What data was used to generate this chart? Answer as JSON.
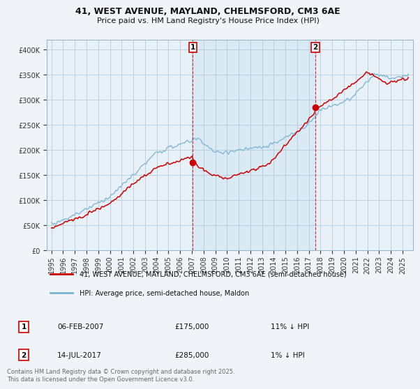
{
  "title1": "41, WEST AVENUE, MAYLAND, CHELMSFORD, CM3 6AE",
  "title2": "Price paid vs. HM Land Registry's House Price Index (HPI)",
  "legend_label1": "41, WEST AVENUE, MAYLAND, CHELMSFORD, CM3 6AE (semi-detached house)",
  "legend_label2": "HPI: Average price, semi-detached house, Maldon",
  "line1_color": "#cc0000",
  "line2_color": "#7ab3d4",
  "shade_color": "#daeaf5",
  "annotation1_date": "06-FEB-2007",
  "annotation1_price": "£175,000",
  "annotation1_hpi": "11% ↓ HPI",
  "annotation2_date": "14-JUL-2017",
  "annotation2_price": "£285,000",
  "annotation2_hpi": "1% ↓ HPI",
  "vline1_x_year": 2007.09,
  "vline2_x_year": 2017.54,
  "sale1_x": 2007.09,
  "sale1_y": 175000,
  "sale2_x": 2017.54,
  "sale2_y": 285000,
  "ylim": [
    0,
    420000
  ],
  "yticks": [
    0,
    50000,
    100000,
    150000,
    200000,
    250000,
    300000,
    350000,
    400000
  ],
  "xlim_min": 1994.6,
  "xlim_max": 2025.9,
  "xlabel_years": [
    "1995",
    "1996",
    "1997",
    "1998",
    "1999",
    "2000",
    "2001",
    "2002",
    "2003",
    "2004",
    "2005",
    "2006",
    "2007",
    "2008",
    "2009",
    "2010",
    "2011",
    "2012",
    "2013",
    "2014",
    "2015",
    "2016",
    "2017",
    "2018",
    "2019",
    "2020",
    "2021",
    "2022",
    "2023",
    "2024",
    "2025"
  ],
  "copyright_text": "Contains HM Land Registry data © Crown copyright and database right 2025.\nThis data is licensed under the Open Government Licence v3.0.",
  "bg_color": "#f0f4f8",
  "plot_bg_color": "#e8f0f8"
}
